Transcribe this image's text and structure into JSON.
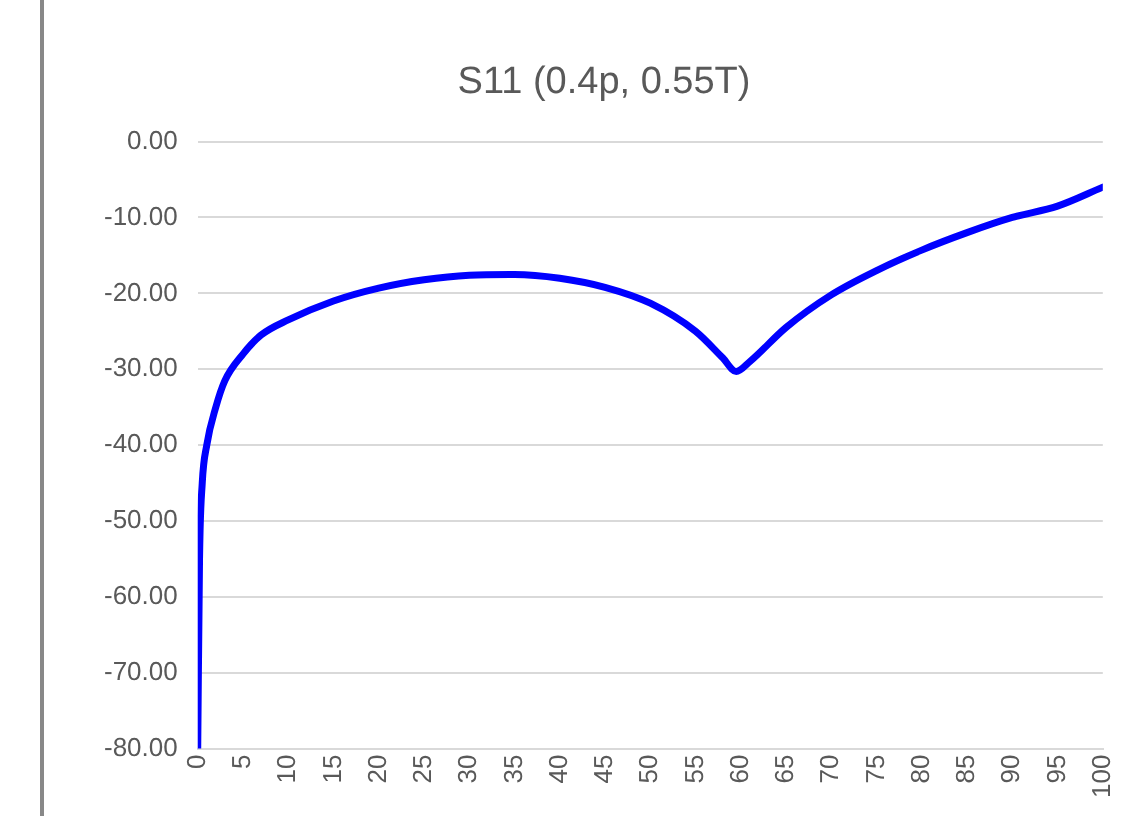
{
  "chart_data": {
    "type": "line",
    "title": "S11 (0.4p, 0.55T)",
    "x": [
      0,
      0.2,
      0.5,
      1,
      2,
      3,
      5,
      7,
      10,
      15,
      20,
      25,
      30,
      35,
      40,
      45,
      50,
      55,
      58,
      59.5,
      61,
      65,
      70,
      75,
      80,
      85,
      90,
      95,
      100
    ],
    "series": [
      {
        "color": "#0000ff",
        "values": [
          -80,
          -55,
          -45,
          -40,
          -35,
          -31.5,
          -28,
          -25.5,
          -23.5,
          -21,
          -19.3,
          -18.2,
          -17.6,
          -17.5,
          -18,
          -19.2,
          -21.3,
          -25,
          -28.5,
          -30.3,
          -29,
          -24.5,
          -20.2,
          -17,
          -14.3,
          -12,
          -10,
          -8.5,
          -6
        ]
      }
    ],
    "xlim": [
      0,
      100
    ],
    "xticks": [
      0,
      5,
      10,
      15,
      20,
      25,
      30,
      35,
      40,
      45,
      50,
      55,
      60,
      65,
      70,
      75,
      80,
      85,
      90,
      95,
      100
    ],
    "ylim": [
      -80,
      0
    ],
    "yticks": [
      {
        "value": 0,
        "label": "0.00"
      },
      {
        "value": -10,
        "label": "-10.00"
      },
      {
        "value": -20,
        "label": "-20.00"
      },
      {
        "value": -30,
        "label": "-30.00"
      },
      {
        "value": -40,
        "label": "-40.00"
      },
      {
        "value": -50,
        "label": "-50.00"
      },
      {
        "value": -60,
        "label": "-60.00"
      },
      {
        "value": -70,
        "label": "-70.00"
      },
      {
        "value": -80,
        "label": "-80.00"
      }
    ],
    "grid": "y",
    "legend": false,
    "marker": "none",
    "line_style": "solid"
  }
}
